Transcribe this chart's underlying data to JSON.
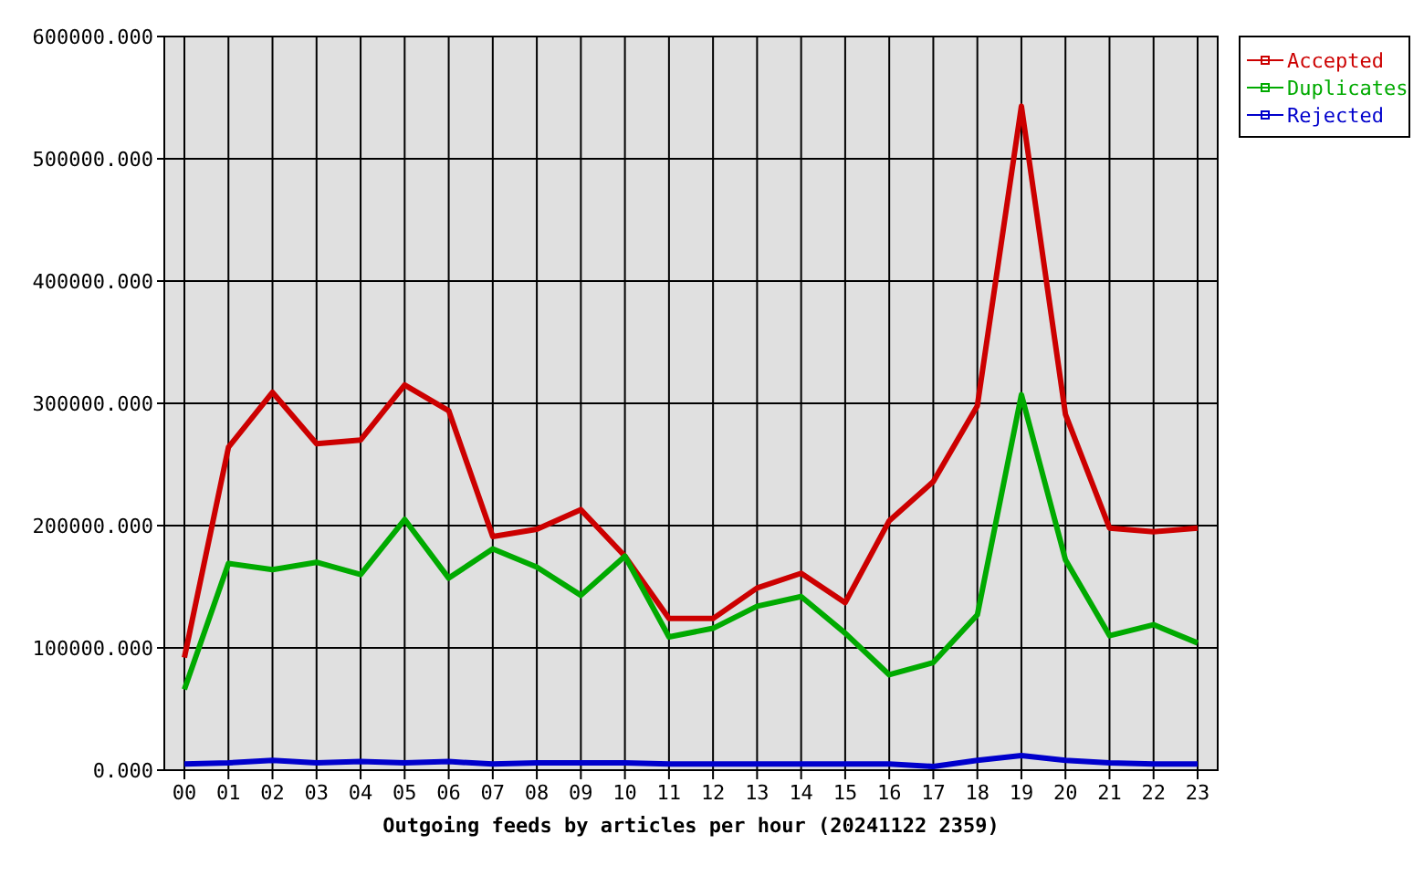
{
  "chart_data": {
    "type": "line",
    "xlabel": "Outgoing feeds by articles per hour (20241122 2359)",
    "categories": [
      "00",
      "01",
      "02",
      "03",
      "04",
      "05",
      "06",
      "07",
      "08",
      "09",
      "10",
      "11",
      "12",
      "13",
      "14",
      "15",
      "16",
      "17",
      "18",
      "19",
      "20",
      "21",
      "22",
      "23"
    ],
    "series": [
      {
        "name": "Accepted",
        "color": "#cc0000",
        "values": [
          92000,
          264000,
          309000,
          267000,
          270000,
          315000,
          294000,
          191000,
          197000,
          213000,
          175000,
          124000,
          124000,
          149000,
          161000,
          137000,
          204000,
          236000,
          298000,
          543000,
          291000,
          198000,
          195000,
          198000
        ]
      },
      {
        "name": "Duplicates",
        "color": "#00aa00",
        "values": [
          66000,
          169000,
          164000,
          170000,
          160000,
          205000,
          157000,
          181000,
          166000,
          143000,
          175000,
          109000,
          116000,
          134000,
          142000,
          112000,
          78000,
          88000,
          127000,
          307000,
          172000,
          110000,
          119000,
          104000
        ]
      },
      {
        "name": "Rejected",
        "color": "#0000cc",
        "values": [
          5000,
          6000,
          8000,
          6000,
          7000,
          6000,
          7000,
          5000,
          6000,
          6000,
          6000,
          5000,
          5000,
          5000,
          5000,
          5000,
          5000,
          3000,
          8000,
          12000,
          8000,
          6000,
          5000,
          5000
        ]
      }
    ],
    "ylim": [
      0,
      600000
    ],
    "yticks": [
      {
        "value": 0,
        "label": "0.000"
      },
      {
        "value": 100000,
        "label": "100000.000"
      },
      {
        "value": 200000,
        "label": "200000.000"
      },
      {
        "value": 300000,
        "label": "300000.000"
      },
      {
        "value": 400000,
        "label": "400000.000"
      },
      {
        "value": 500000,
        "label": "500000.000"
      },
      {
        "value": 600000,
        "label": "600000.000"
      }
    ],
    "grid": true,
    "legend": "top right",
    "marker": "none",
    "line_style": "solid"
  }
}
